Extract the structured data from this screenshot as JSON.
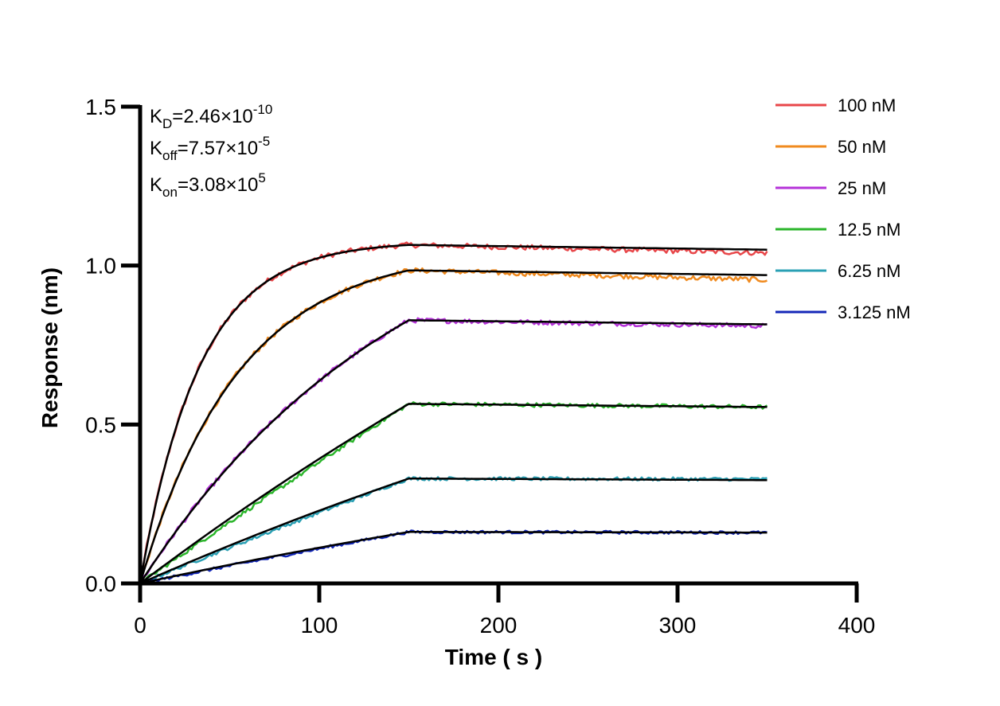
{
  "chart_data": {
    "type": "line",
    "xlabel": "Time ( s )",
    "ylabel": "Response (nm)",
    "xlim": [
      0,
      400
    ],
    "ylim": [
      0,
      1.5
    ],
    "xticks": [
      "0",
      "100",
      "200",
      "300",
      "400"
    ],
    "yticks": [
      "0.0",
      "0.5",
      "1.0",
      "1.5"
    ],
    "grid": false,
    "legend_position": "top-right",
    "annotations": {
      "kd": {
        "base": "K",
        "sub": "D",
        "value": "=2.46×10",
        "exp": "-10"
      },
      "koff": {
        "base": "K",
        "sub": "off",
        "value": "=7.57×10",
        "exp": "-5"
      },
      "kon": {
        "base": "K",
        "sub": "on",
        "value": "=3.08×10",
        "exp": "5"
      }
    },
    "association_end_s": 150,
    "dissociation_end_s": 350,
    "fit_color": "#000000",
    "series": [
      {
        "name": "100 nM",
        "color": "#e8474a",
        "plateau": 1.065,
        "end": 1.05,
        "obs_end": 1.04,
        "shape": "fast"
      },
      {
        "name": "50 nM",
        "color": "#f08a1e",
        "plateau": 0.985,
        "end": 0.97,
        "obs_end": 0.955,
        "shape": "medium"
      },
      {
        "name": "25 nM",
        "color": "#b533d9",
        "plateau": 0.828,
        "end": 0.815,
        "obs_end": 0.81,
        "shape": "slow"
      },
      {
        "name": "12.5 nM",
        "color": "#2bb52b",
        "plateau": 0.565,
        "end": 0.555,
        "obs_end": 0.555,
        "shape": "linear"
      },
      {
        "name": "6.25 nM",
        "color": "#2aa0b4",
        "plateau": 0.33,
        "end": 0.325,
        "obs_end": 0.328,
        "shape": "linear"
      },
      {
        "name": "3.125 nM",
        "color": "#1428b8",
        "plateau": 0.162,
        "end": 0.16,
        "obs_end": 0.16,
        "shape": "linear"
      }
    ]
  }
}
